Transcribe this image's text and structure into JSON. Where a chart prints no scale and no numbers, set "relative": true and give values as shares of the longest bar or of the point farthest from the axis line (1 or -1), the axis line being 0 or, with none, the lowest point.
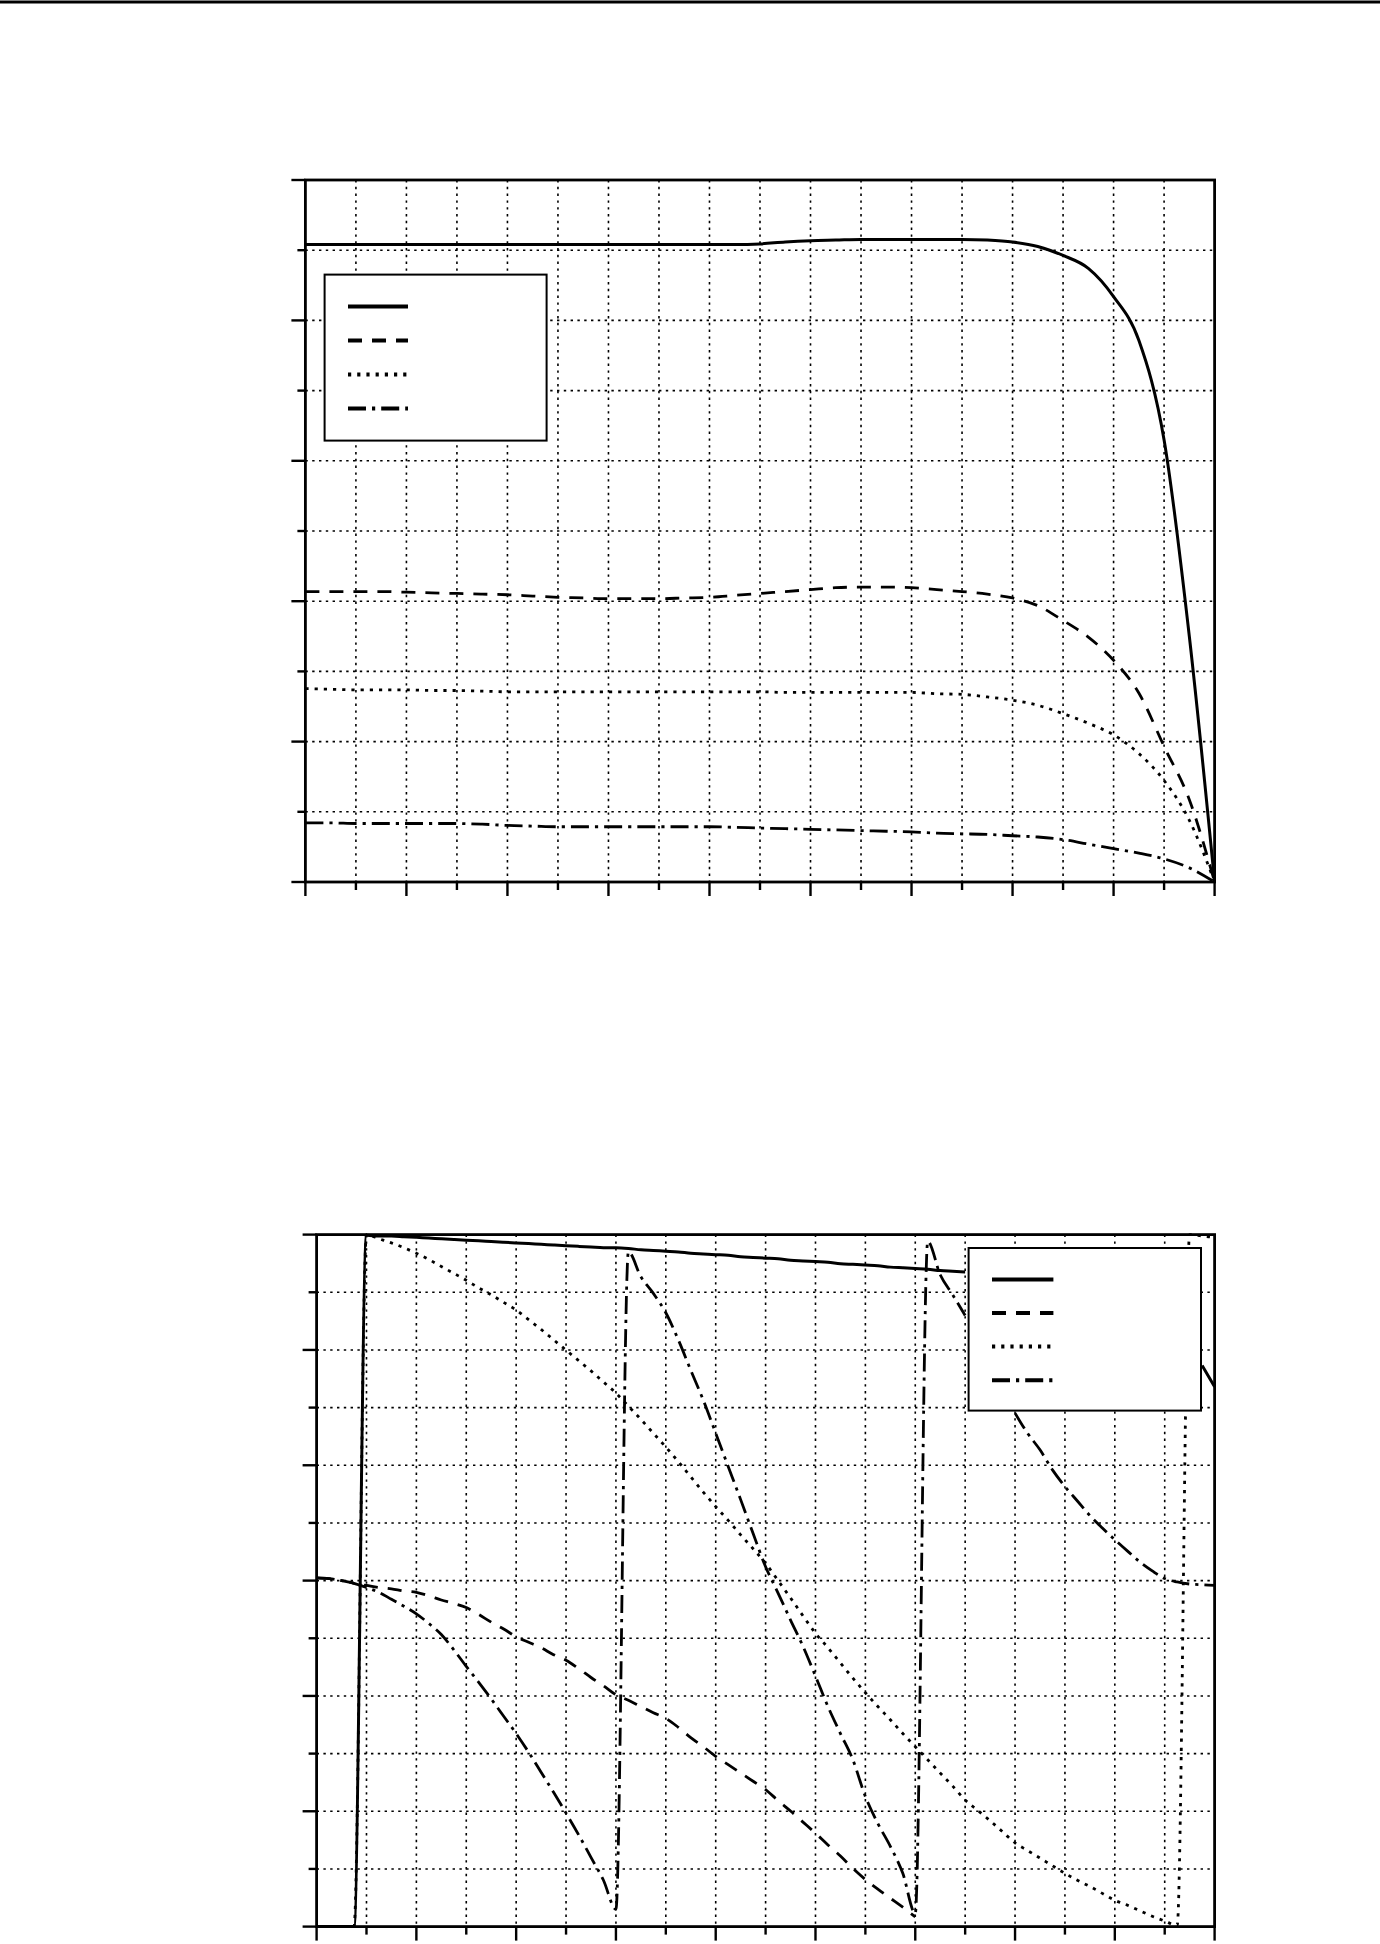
{
  "chart_data": [
    {
      "type": "line",
      "relative": true,
      "grid": true,
      "categories": [
        null,
        null,
        null,
        null,
        null,
        null,
        null,
        null,
        null,
        null,
        null,
        null,
        null,
        null,
        null,
        null,
        null,
        null,
        null,
        null,
        null,
        null,
        null,
        null,
        null,
        null,
        null,
        null,
        null,
        null,
        null,
        null,
        null,
        null,
        null,
        null,
        null
      ],
      "series": [
        {
          "color": "#000000",
          "line_style": "solid",
          "values": [
            0.992,
            0.992,
            0.992,
            0.992,
            0.992,
            0.992,
            0.992,
            0.992,
            0.992,
            0.992,
            0.992,
            0.992,
            0.992,
            0.992,
            0.992,
            0.992,
            0.992,
            0.992,
            0.993,
            0.996,
            0.998,
            0.999,
            1,
            1,
            1,
            1,
            1,
            0.999,
            0.996,
            0.989,
            0.975,
            0.955,
            0.911,
            0.843,
            0.688,
            0.382,
            0
          ]
        },
        {
          "color": "#000000",
          "line_style": "dashed",
          "values": [
            0.452,
            0.452,
            0.452,
            0.452,
            0.451,
            0.45,
            0.449,
            0.448,
            0.447,
            0.445,
            0.443,
            0.442,
            0.441,
            0.441,
            0.441,
            0.442,
            0.443,
            0.446,
            0.449,
            0.452,
            0.455,
            0.458,
            0.459,
            0.459,
            0.458,
            0.455,
            0.452,
            0.448,
            0.442,
            0.43,
            0.407,
            0.381,
            0.345,
            0.294,
            0.211,
            0.128,
            0
          ]
        },
        {
          "color": "#000000",
          "line_style": "dotted",
          "values": [
            0.301,
            0.3,
            0.299,
            0.299,
            0.299,
            0.298,
            0.298,
            0.297,
            0.296,
            0.296,
            0.296,
            0.296,
            0.296,
            0.296,
            0.296,
            0.296,
            0.296,
            0.296,
            0.296,
            0.295,
            0.295,
            0.295,
            0.295,
            0.295,
            0.295,
            0.293,
            0.292,
            0.288,
            0.283,
            0.275,
            0.262,
            0.247,
            0.229,
            0.2,
            0.158,
            0.096,
            0
          ]
        },
        {
          "color": "#000000",
          "line_style": "dashdot",
          "values": [
            0.092,
            0.092,
            0.091,
            0.091,
            0.091,
            0.091,
            0.091,
            0.09,
            0.088,
            0.087,
            0.086,
            0.086,
            0.086,
            0.086,
            0.086,
            0.086,
            0.086,
            0.085,
            0.084,
            0.083,
            0.082,
            0.081,
            0.08,
            0.079,
            0.078,
            0.076,
            0.075,
            0.074,
            0.072,
            0.07,
            0.066,
            0.059,
            0.052,
            0.045,
            0.036,
            0.022,
            0
          ]
        }
      ]
    },
    {
      "type": "line",
      "relative": true,
      "grid": true,
      "categories": [
        null,
        null,
        null,
        null,
        null,
        null,
        null,
        null,
        null,
        null,
        null,
        null,
        null,
        null,
        null,
        null,
        null,
        null,
        null,
        null,
        null,
        null,
        null,
        null,
        null,
        null,
        null,
        null,
        null,
        null,
        null,
        null,
        null,
        null,
        null,
        null,
        null,
        null,
        null,
        null,
        null,
        null,
        null,
        null,
        null,
        null,
        null,
        null,
        null,
        null,
        null,
        null,
        null,
        null,
        null,
        null,
        null,
        null,
        null,
        null,
        null,
        null,
        null,
        null,
        null,
        null,
        null,
        null,
        null,
        null,
        null,
        null,
        null
      ],
      "series": [
        {
          "color": "#000000",
          "line_style": "solid",
          "values": [
            0,
            0,
            0,
            0,
            0.999,
            0.998,
            0.998,
            0.997,
            0.996,
            0.995,
            0.994,
            0.993,
            0.992,
            0.991,
            0.99,
            0.989,
            0.988,
            0.987,
            0.986,
            0.985,
            0.984,
            0.983,
            0.982,
            0.981,
            0.981,
            0.98,
            0.978,
            0.977,
            0.976,
            0.975,
            0.973,
            0.972,
            0.971,
            0.97,
            0.968,
            0.967,
            0.966,
            0.965,
            0.963,
            0.962,
            0.961,
            0.96,
            0.958,
            0.957,
            0.956,
            0.955,
            0.953,
            0.952,
            0.951,
            0.95,
            0.948,
            0.947,
            0.946,
            null,
            null,
            null,
            null,
            null,
            null,
            null,
            null,
            null,
            null,
            null,
            null,
            null,
            null,
            null,
            null,
            null,
            null,
            0.811,
            0.78
          ]
        },
        {
          "color": "#000000",
          "line_style": "dashed",
          "values": [
            0.504,
            0.503,
            0.5,
            0.496,
            0.493,
            0.49,
            0.488,
            0.485,
            0.483,
            0.478,
            0.472,
            0.467,
            0.461,
            0.451,
            0.44,
            0.43,
            0.419,
            0.411,
            0.403,
            0.393,
            0.385,
            0.373,
            0.36,
            0.348,
            0.335,
            0.327,
            0.318,
            0.309,
            0.301,
            0.288,
            0.273,
            0.26,
            0.246,
            0.234,
            0.222,
            0.21,
            0.198,
            0.182,
            0.167,
            0.151,
            0.135,
            0.118,
            0.102,
            0.084,
            0.068,
            0.054,
            0.041,
            0.028,
            0.014,
            null,
            null,
            null,
            null,
            null,
            null,
            null,
            null,
            null,
            null,
            null,
            null,
            null,
            null,
            null,
            null,
            null,
            null,
            null,
            null,
            null,
            null,
            null,
            null
          ]
        },
        {
          "color": "#000000",
          "line_style": "dotted",
          "values": [
            0,
            0,
            0,
            0,
            1.0,
            0.994,
            0.988,
            0.981,
            0.973,
            0.964,
            0.954,
            0.944,
            0.934,
            0.923,
            0.913,
            0.902,
            0.891,
            0.877,
            0.863,
            0.848,
            0.833,
            0.818,
            0.803,
            0.787,
            0.771,
            0.752,
            0.733,
            0.713,
            0.693,
            0.672,
            0.65,
            0.628,
            0.607,
            0.587,
            0.566,
            0.546,
            0.525,
            0.5,
            0.475,
            0.449,
            0.424,
            0.403,
            0.381,
            0.359,
            0.338,
            0.318,
            0.299,
            0.279,
            0.26,
            0.241,
            0.222,
            0.203,
            0.183,
            0.168,
            0.153,
            0.137,
            0.121,
            0.11,
            0.099,
            0.088,
            0.077,
            0.067,
            0.058,
            0.048,
            0.038,
            0.031,
            0.023,
            0.015,
            0.008,
            0.002,
            1.0,
            0.998,
            0.996
          ]
        },
        {
          "color": "#000000",
          "line_style": "dashdot",
          "values": [
            0.504,
            0.503,
            0.5,
            0.496,
            0.49,
            0.483,
            0.473,
            0.463,
            0.452,
            0.438,
            0.422,
            0.4,
            0.376,
            0.353,
            0.329,
            0.304,
            0.279,
            0.252,
            0.223,
            0.194,
            0.164,
            0.133,
            0.1,
            0.067,
            0.025,
            0.975,
            0.939,
            0.915,
            0.887,
            0.848,
            0.804,
            0.761,
            0.713,
            0.665,
            0.617,
            0.568,
            0.52,
            0.482,
            0.443,
            0.405,
            0.362,
            0.318,
            0.279,
            0.241,
            0.188,
            0.149,
            0.116,
            0.077,
            0.019,
            0.99,
            0.942,
            0.913,
            0.883,
            null,
            null,
            null,
            0.742,
            0.713,
            0.689,
            0.66,
            0.636,
            0.615,
            0.594,
            0.576,
            0.559,
            0.543,
            0.527,
            0.514,
            0.503,
            0.498,
            0.495,
            0.494,
            0.493
          ]
        }
      ]
    }
  ]
}
